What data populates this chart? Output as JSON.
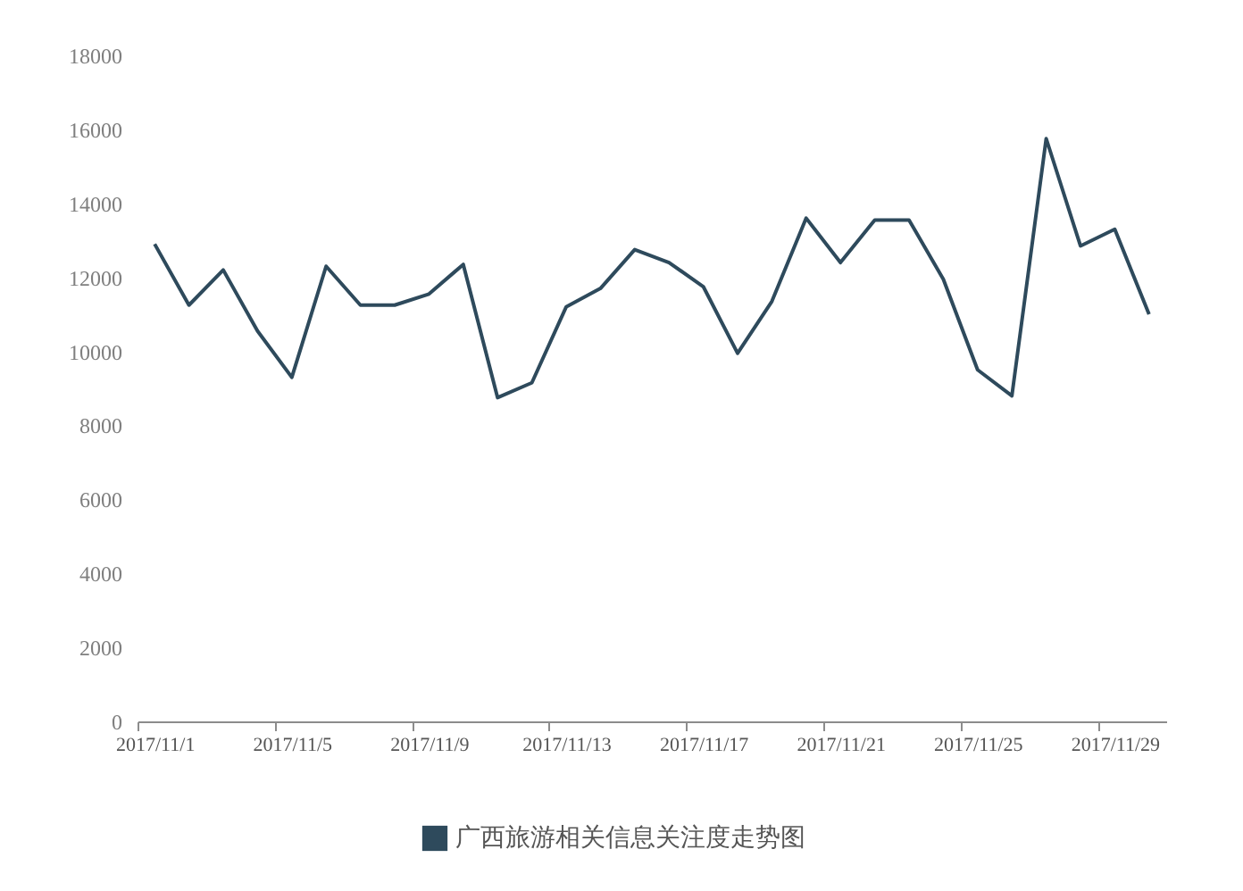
{
  "chart_data": {
    "type": "line",
    "categories": [
      "2017/11/1",
      null,
      null,
      null,
      "2017/11/5",
      null,
      null,
      null,
      "2017/11/9",
      null,
      null,
      null,
      "2017/11/13",
      null,
      null,
      null,
      "2017/11/17",
      null,
      null,
      null,
      "2017/11/21",
      null,
      null,
      null,
      "2017/11/25",
      null,
      null,
      null,
      "2017/11/29",
      null
    ],
    "series": [
      {
        "name": "广西旅游相关信息关注度走势图",
        "color": "#2e4a5c",
        "values": [
          12900,
          11250,
          12200,
          10550,
          9300,
          12300,
          11250,
          11250,
          11550,
          12350,
          8750,
          9150,
          11200,
          11700,
          12750,
          12400,
          11750,
          9950,
          11350,
          13600,
          12400,
          13550,
          13550,
          11950,
          9500,
          8800,
          15750,
          12850,
          13300,
          11000
        ]
      }
    ],
    "ylim": [
      0,
      18000
    ],
    "yticks": [
      0,
      2000,
      4000,
      6000,
      8000,
      10000,
      12000,
      14000,
      16000,
      18000
    ],
    "grid": false,
    "legend": "bottom",
    "marker": "none",
    "line_style": "solid"
  }
}
